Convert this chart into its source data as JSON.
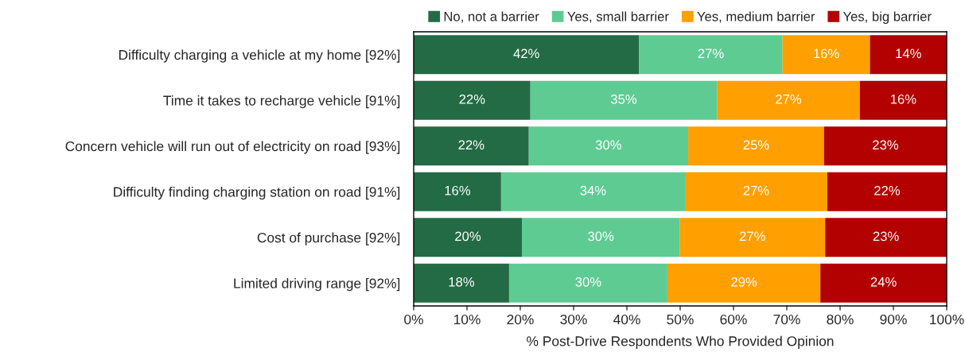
{
  "chart_data": {
    "type": "bar",
    "orientation": "horizontal",
    "stacked": true,
    "xlabel": "% Post-Drive Respondents Who Provided Opinion",
    "categories": [
      "Difficulty charging a vehicle at my home [92%]",
      "Time it takes to recharge vehicle [91%]",
      "Concern vehicle will run out of electricity on road [93%]",
      "Difficulty finding charging station on road [91%]",
      "Cost of purchase [92%]",
      "Limited driving range [92%]"
    ],
    "series": [
      {
        "name": "No, not a barrier",
        "color": "#236b45",
        "values": [
          42.3,
          21.9,
          21.6,
          16.4,
          20.3,
          17.9
        ],
        "value_labels": [
          "42%",
          "22%",
          "22%",
          "16%",
          "20%",
          "18%"
        ]
      },
      {
        "name": "Yes, small barrier",
        "color": "#5ecb93",
        "values": [
          26.9,
          35.0,
          29.9,
          34.5,
          29.6,
          29.7
        ],
        "value_labels": [
          "27%",
          "35%",
          "30%",
          "34%",
          "30%",
          "30%"
        ]
      },
      {
        "name": "Yes, medium barrier",
        "color": "#ff9f00",
        "values": [
          16.4,
          26.8,
          25.5,
          26.7,
          27.3,
          28.7
        ],
        "value_labels": [
          "16%",
          "27%",
          "25%",
          "27%",
          "27%",
          "29%"
        ]
      },
      {
        "name": "Yes, big barrier",
        "color": "#b30000",
        "values": [
          14.4,
          16.3,
          23.0,
          22.4,
          22.8,
          23.7
        ],
        "value_labels": [
          "14%",
          "16%",
          "23%",
          "22%",
          "23%",
          "24%"
        ]
      }
    ],
    "xlim": [
      0,
      100
    ],
    "xticks": [
      {
        "value": 0,
        "label": "0%"
      },
      {
        "value": 10,
        "label": "10%"
      },
      {
        "value": 20,
        "label": "20%"
      },
      {
        "value": 30,
        "label": "30%"
      },
      {
        "value": 40,
        "label": "40%"
      },
      {
        "value": 50,
        "label": "50%"
      },
      {
        "value": 60,
        "label": "60%"
      },
      {
        "value": 70,
        "label": "70%"
      },
      {
        "value": 80,
        "label": "80%"
      },
      {
        "value": 90,
        "label": "90%"
      },
      {
        "value": 100,
        "label": "100%"
      }
    ],
    "legend": "top",
    "grid": false
  }
}
